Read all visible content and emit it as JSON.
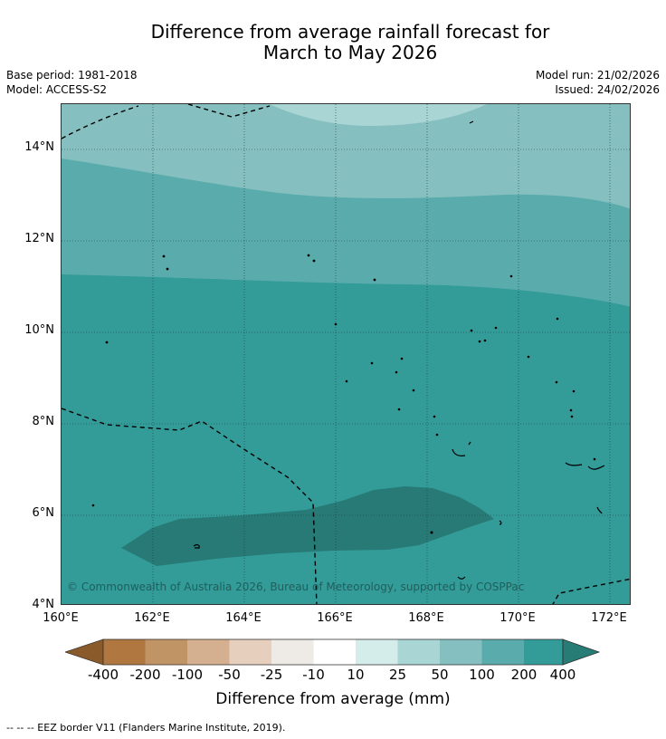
{
  "title_line1": "Difference from average rainfall forecast for",
  "title_line2": "March to May 2026",
  "base_period": "Base period: 1981-2018",
  "model": "Model: ACCESS-S2",
  "model_run": "Model run: 21/02/2026",
  "issued": "Issued: 24/02/2026",
  "copyright": "© Commonwealth of Australia 2026, Bureau of Meteorology, supported by COSPPac",
  "lat_labels": [
    "14°N",
    "12°N",
    "10°N",
    "8°N",
    "6°N",
    "4°N"
  ],
  "lon_labels": [
    "160°E",
    "162°E",
    "164°E",
    "166°E",
    "168°E",
    "170°E",
    "172°E"
  ],
  "legend": {
    "title": "Difference from average (mm)",
    "ticks": [
      "-400",
      "-200",
      "-100",
      "-50",
      "-25",
      "-10",
      "10",
      "25",
      "50",
      "100",
      "200",
      "400"
    ],
    "colors": [
      "#8b5a2b",
      "#b07840",
      "#c19466",
      "#d5b090",
      "#e6cfbd",
      "#eeeae6",
      "#ffffff",
      "#d4ecea",
      "#a9d5d4",
      "#86bfc0",
      "#5aacac",
      "#339b98",
      "#277c76"
    ]
  },
  "map_colors": {
    "band_50_100": "#a9d5d4",
    "band_100_200": "#86bfc0",
    "band_200_400": "#5aacac",
    "band_400_plus": "#339b98",
    "band_max": "#277a75"
  },
  "footnote": "-- -- -- EEZ border V11 (Flanders Marine Institute, 2019)."
}
